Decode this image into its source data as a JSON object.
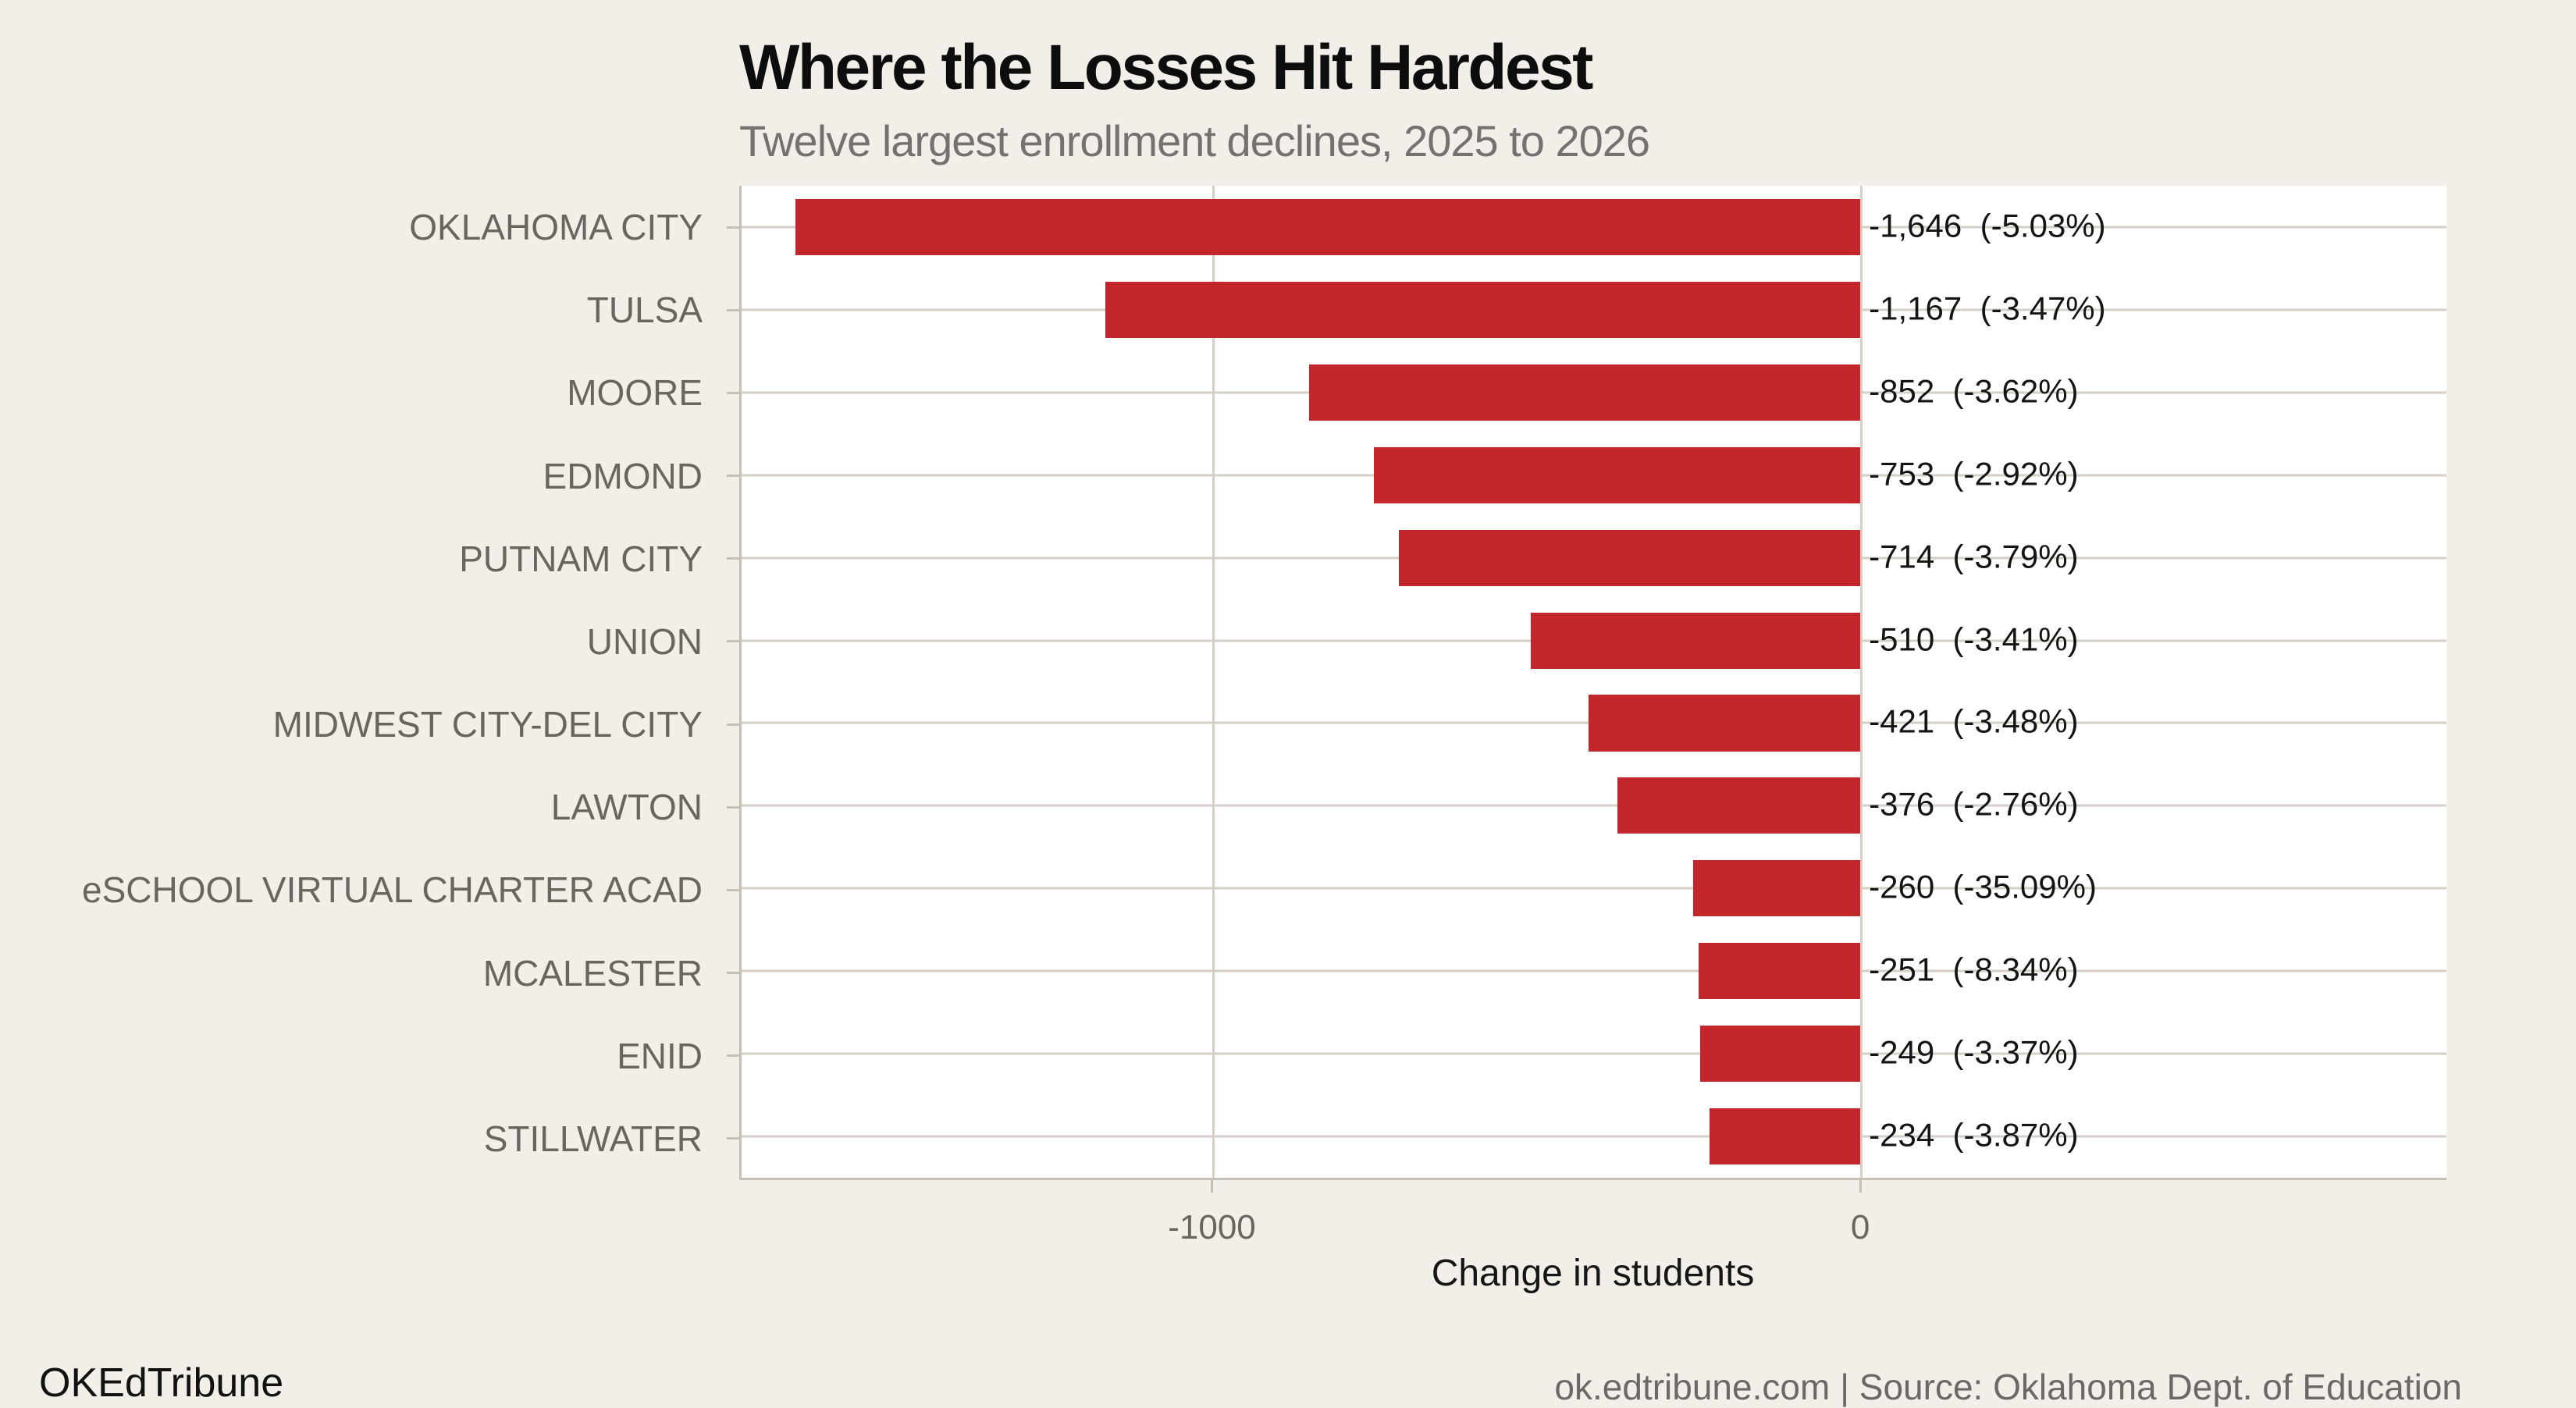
{
  "header": {
    "title": "Where the Losses Hit Hardest",
    "subtitle": "Twelve largest enrollment declines, 2025 to 2026"
  },
  "chart_data": {
    "type": "bar",
    "orientation": "horizontal",
    "title": "Where the Losses Hit Hardest",
    "subtitle": "Twelve largest enrollment declines, 2025 to 2026",
    "categories": [
      "OKLAHOMA CITY",
      "TULSA",
      "MOORE",
      "EDMOND",
      "PUTNAM CITY",
      "UNION",
      "MIDWEST CITY-DEL CITY",
      "LAWTON",
      "eSCHOOL VIRTUAL CHARTER ACAD",
      "MCALESTER",
      "ENID",
      "STILLWATER"
    ],
    "values": [
      -1646,
      -1167,
      -852,
      -753,
      -714,
      -510,
      -421,
      -376,
      -260,
      -251,
      -249,
      -234
    ],
    "percent_changes": [
      -5.03,
      -3.47,
      -3.62,
      -2.92,
      -3.79,
      -3.41,
      -3.48,
      -2.76,
      -35.09,
      -8.34,
      -3.37,
      -3.87
    ],
    "bar_labels": [
      "-1,646  (-5.03%)",
      "-1,167  (-3.47%)",
      "-852  (-3.62%)",
      "-753  (-2.92%)",
      "-714  (-3.79%)",
      "-510  (-3.41%)",
      "-421  (-3.48%)",
      "-376  (-2.76%)",
      "-260  (-35.09%)",
      "-251  (-8.34%)",
      "-249  (-3.37%)",
      "-234  (-3.87%)"
    ],
    "xlabel": "Change in students",
    "ylabel": "",
    "xlim": [
      -1729,
      904
    ],
    "x_ticks": [
      {
        "value": -1000,
        "label": "-1000"
      },
      {
        "value": 0,
        "label": "0"
      }
    ],
    "grid": "on",
    "legend": "none",
    "bar_color": "#C3272B"
  },
  "axis": {
    "x_title": "Change in students"
  },
  "footer": {
    "brand": "OKEdTribune",
    "credit": "ok.edtribune.com | Source: Oklahoma Dept. of Education"
  },
  "colors": {
    "background": "#F2EFE9",
    "plot_background": "#FFFFFF",
    "bar": "#C3272B",
    "gridline": "#D5CFC5",
    "axis_line": "#C6BFB3",
    "tick_label": "#6A655F",
    "title": "#0D0D0D",
    "subtitle": "#747270",
    "value_label": "#141414"
  }
}
